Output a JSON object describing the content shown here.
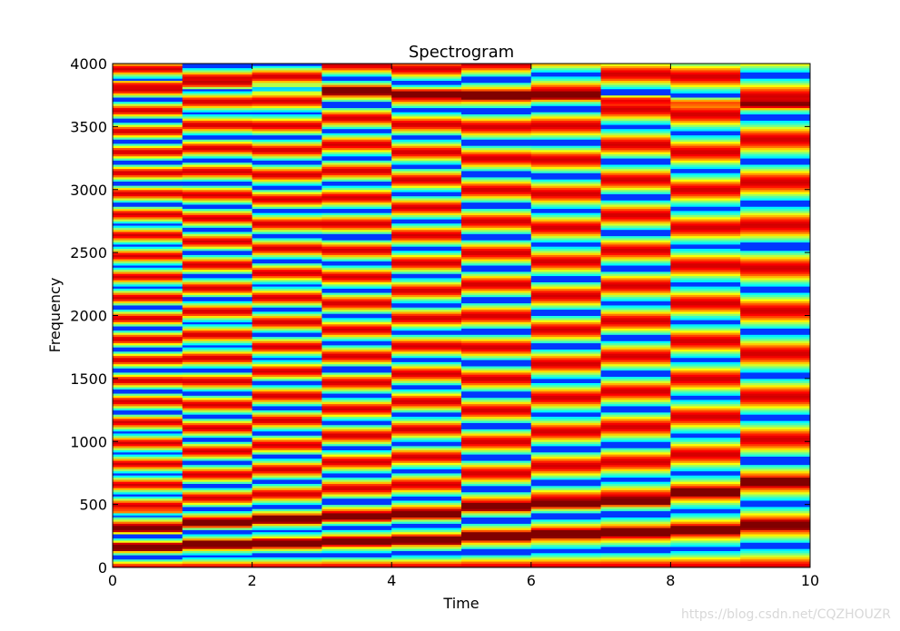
{
  "chart_data": {
    "type": "heatmap",
    "title": "Spectrogram",
    "xlabel": "Time",
    "ylabel": "Frequency",
    "xlim": [
      0,
      10
    ],
    "ylim": [
      0,
      4000
    ],
    "xticks": [
      0,
      2,
      4,
      6,
      8,
      10
    ],
    "yticks": [
      0,
      500,
      1000,
      1500,
      2000,
      2500,
      3000,
      3500,
      4000
    ],
    "colormap": "jet",
    "segments": [
      {
        "t_start": 0,
        "t_end": 1,
        "fundamental_hz": 165,
        "peak_bands_hz": [
          165,
          300,
          430,
          3850
        ]
      },
      {
        "t_start": 1,
        "t_end": 2,
        "fundamental_hz": 185,
        "peak_bands_hz": [
          185,
          350,
          3830
        ]
      },
      {
        "t_start": 2,
        "t_end": 3,
        "fundamental_hz": 195,
        "peak_bands_hz": [
          195,
          380,
          3800
        ]
      },
      {
        "t_start": 3,
        "t_end": 4,
        "fundamental_hz": 210,
        "peak_bands_hz": [
          210,
          400,
          3790
        ]
      },
      {
        "t_start": 4,
        "t_end": 5,
        "fundamental_hz": 220,
        "peak_bands_hz": [
          220,
          420,
          3770
        ]
      },
      {
        "t_start": 5,
        "t_end": 6,
        "fundamental_hz": 250,
        "peak_bands_hz": [
          250,
          480,
          3750
        ]
      },
      {
        "t_start": 6,
        "t_end": 7,
        "fundamental_hz": 270,
        "peak_bands_hz": [
          270,
          500,
          3740
        ]
      },
      {
        "t_start": 7,
        "t_end": 8,
        "fundamental_hz": 280,
        "peak_bands_hz": [
          280,
          520,
          3720
        ]
      },
      {
        "t_start": 8,
        "t_end": 9,
        "fundamental_hz": 300,
        "peak_bands_hz": [
          300,
          600,
          3700
        ]
      },
      {
        "t_start": 9,
        "t_end": 10,
        "fundamental_hz": 340,
        "peak_bands_hz": [
          340,
          680,
          3670
        ]
      }
    ]
  },
  "watermark": "https://blog.csdn.net/CQZHOUZR"
}
